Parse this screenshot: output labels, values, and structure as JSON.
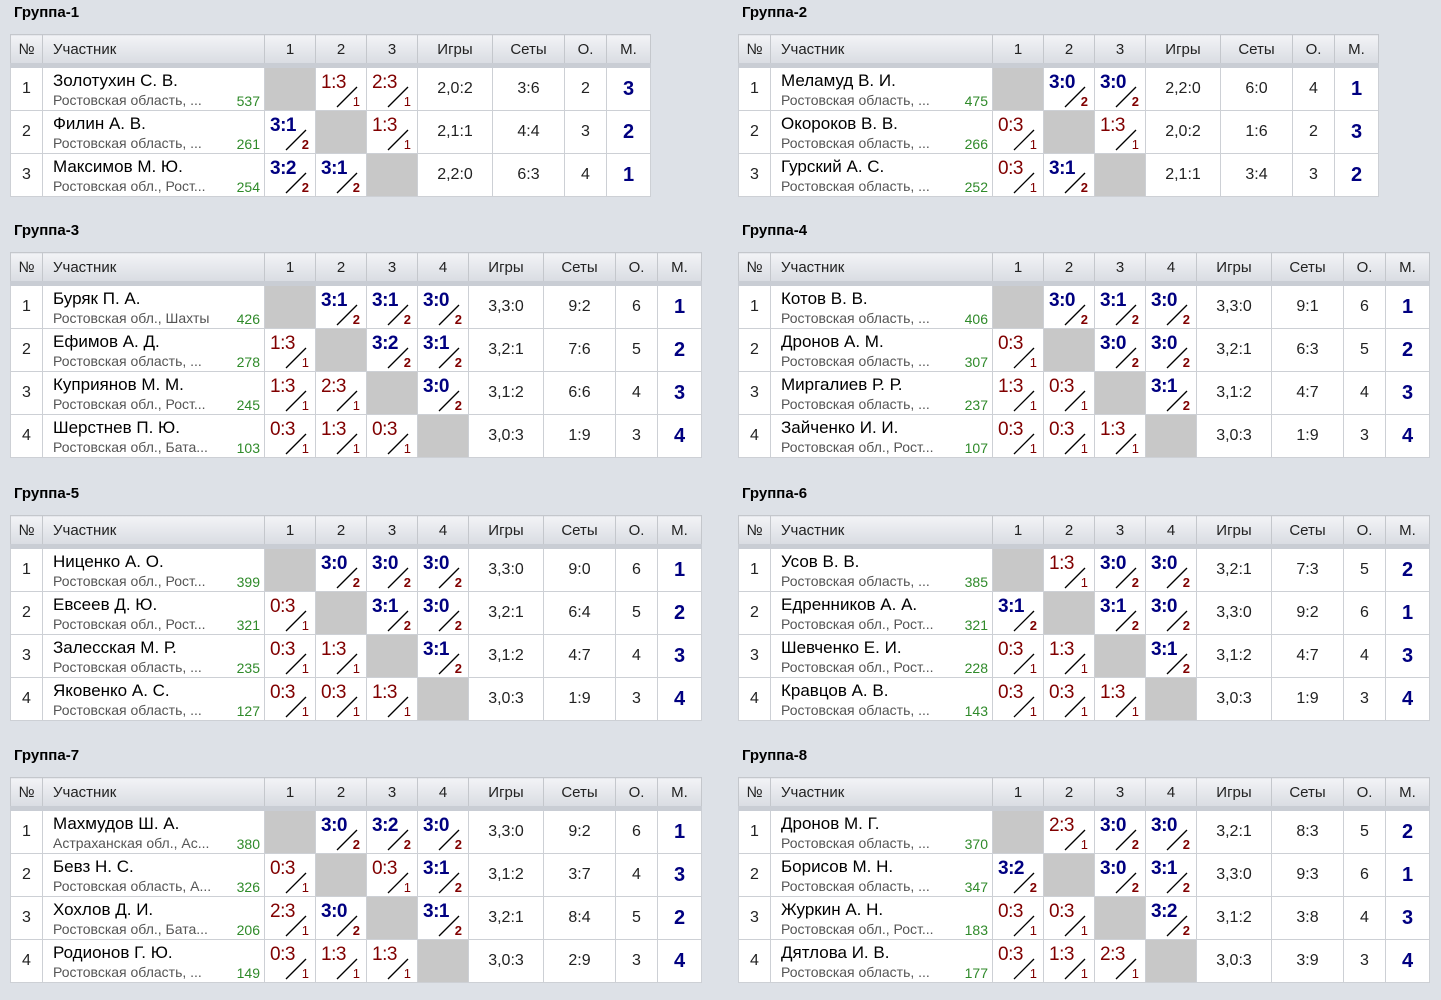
{
  "headers": {
    "num": "№",
    "participant": "Участник",
    "games": "Игры",
    "sets": "Сеты",
    "points": "О.",
    "place": "М."
  },
  "groups": [
    {
      "title": "Группа-1",
      "players": [
        {
          "num": "1",
          "name": "Золотухин С. В.",
          "region": "Ростовская область, ...",
          "rating": "537",
          "matches": [
            null,
            {
              "score": "1:3",
              "pts": "1",
              "win": false
            },
            {
              "score": "2:3",
              "pts": "1",
              "win": false
            }
          ],
          "games": "2,0:2",
          "sets": "3:6",
          "points": "2",
          "place": "3"
        },
        {
          "num": "2",
          "name": "Филин А. В.",
          "region": "Ростовская область, ...",
          "rating": "261",
          "matches": [
            {
              "score": "3:1",
              "pts": "2",
              "win": true
            },
            null,
            {
              "score": "1:3",
              "pts": "1",
              "win": false
            }
          ],
          "games": "2,1:1",
          "sets": "4:4",
          "points": "3",
          "place": "2"
        },
        {
          "num": "3",
          "name": "Максимов М. Ю.",
          "region": "Ростовская обл., Рост...",
          "rating": "254",
          "matches": [
            {
              "score": "3:2",
              "pts": "2",
              "win": true
            },
            {
              "score": "3:1",
              "pts": "2",
              "win": true
            },
            null
          ],
          "games": "2,2:0",
          "sets": "6:3",
          "points": "4",
          "place": "1"
        }
      ]
    },
    {
      "title": "Группа-2",
      "players": [
        {
          "num": "1",
          "name": "Меламуд В. И.",
          "region": "Ростовская область, ...",
          "rating": "475",
          "matches": [
            null,
            {
              "score": "3:0",
              "pts": "2",
              "win": true
            },
            {
              "score": "3:0",
              "pts": "2",
              "win": true
            }
          ],
          "games": "2,2:0",
          "sets": "6:0",
          "points": "4",
          "place": "1"
        },
        {
          "num": "2",
          "name": "Окороков В. В.",
          "region": "Ростовская область, ...",
          "rating": "266",
          "matches": [
            {
              "score": "0:3",
              "pts": "1",
              "win": false
            },
            null,
            {
              "score": "1:3",
              "pts": "1",
              "win": false
            }
          ],
          "games": "2,0:2",
          "sets": "1:6",
          "points": "2",
          "place": "3"
        },
        {
          "num": "3",
          "name": "Гурский А. С.",
          "region": "Ростовская область, ...",
          "rating": "252",
          "matches": [
            {
              "score": "0:3",
              "pts": "1",
              "win": false
            },
            {
              "score": "3:1",
              "pts": "2",
              "win": true
            },
            null
          ],
          "games": "2,1:1",
          "sets": "3:4",
          "points": "3",
          "place": "2"
        }
      ]
    },
    {
      "title": "Группа-3",
      "players": [
        {
          "num": "1",
          "name": "Буряк П. А.",
          "region": "Ростовская обл., Шахты",
          "rating": "426",
          "matches": [
            null,
            {
              "score": "3:1",
              "pts": "2",
              "win": true
            },
            {
              "score": "3:1",
              "pts": "2",
              "win": true
            },
            {
              "score": "3:0",
              "pts": "2",
              "win": true
            }
          ],
          "games": "3,3:0",
          "sets": "9:2",
          "points": "6",
          "place": "1"
        },
        {
          "num": "2",
          "name": "Ефимов А. Д.",
          "region": "Ростовская область, ...",
          "rating": "278",
          "matches": [
            {
              "score": "1:3",
              "pts": "1",
              "win": false
            },
            null,
            {
              "score": "3:2",
              "pts": "2",
              "win": true
            },
            {
              "score": "3:1",
              "pts": "2",
              "win": true
            }
          ],
          "games": "3,2:1",
          "sets": "7:6",
          "points": "5",
          "place": "2"
        },
        {
          "num": "3",
          "name": "Куприянов М. М.",
          "region": "Ростовская обл., Рост...",
          "rating": "245",
          "matches": [
            {
              "score": "1:3",
              "pts": "1",
              "win": false
            },
            {
              "score": "2:3",
              "pts": "1",
              "win": false
            },
            null,
            {
              "score": "3:0",
              "pts": "2",
              "win": true
            }
          ],
          "games": "3,1:2",
          "sets": "6:6",
          "points": "4",
          "place": "3"
        },
        {
          "num": "4",
          "name": "Шерстнев П. Ю.",
          "region": "Ростовская обл., Бата...",
          "rating": "103",
          "matches": [
            {
              "score": "0:3",
              "pts": "1",
              "win": false
            },
            {
              "score": "1:3",
              "pts": "1",
              "win": false
            },
            {
              "score": "0:3",
              "pts": "1",
              "win": false
            },
            null
          ],
          "games": "3,0:3",
          "sets": "1:9",
          "points": "3",
          "place": "4"
        }
      ]
    },
    {
      "title": "Группа-4",
      "players": [
        {
          "num": "1",
          "name": "Котов В. В.",
          "region": "Ростовская область, ...",
          "rating": "406",
          "matches": [
            null,
            {
              "score": "3:0",
              "pts": "2",
              "win": true
            },
            {
              "score": "3:1",
              "pts": "2",
              "win": true
            },
            {
              "score": "3:0",
              "pts": "2",
              "win": true
            }
          ],
          "games": "3,3:0",
          "sets": "9:1",
          "points": "6",
          "place": "1"
        },
        {
          "num": "2",
          "name": "Дронов А. М.",
          "region": "Ростовская область, ...",
          "rating": "307",
          "matches": [
            {
              "score": "0:3",
              "pts": "1",
              "win": false
            },
            null,
            {
              "score": "3:0",
              "pts": "2",
              "win": true
            },
            {
              "score": "3:0",
              "pts": "2",
              "win": true
            }
          ],
          "games": "3,2:1",
          "sets": "6:3",
          "points": "5",
          "place": "2"
        },
        {
          "num": "3",
          "name": "Миргалиев Р. Р.",
          "region": "Ростовская область, ...",
          "rating": "237",
          "matches": [
            {
              "score": "1:3",
              "pts": "1",
              "win": false
            },
            {
              "score": "0:3",
              "pts": "1",
              "win": false
            },
            null,
            {
              "score": "3:1",
              "pts": "2",
              "win": true
            }
          ],
          "games": "3,1:2",
          "sets": "4:7",
          "points": "4",
          "place": "3"
        },
        {
          "num": "4",
          "name": "Зайченко И. И.",
          "region": "Ростовская обл., Рост...",
          "rating": "107",
          "matches": [
            {
              "score": "0:3",
              "pts": "1",
              "win": false
            },
            {
              "score": "0:3",
              "pts": "1",
              "win": false
            },
            {
              "score": "1:3",
              "pts": "1",
              "win": false
            },
            null
          ],
          "games": "3,0:3",
          "sets": "1:9",
          "points": "3",
          "place": "4"
        }
      ]
    },
    {
      "title": "Группа-5",
      "players": [
        {
          "num": "1",
          "name": "Ниценко А. О.",
          "region": "Ростовская обл., Рост...",
          "rating": "399",
          "matches": [
            null,
            {
              "score": "3:0",
              "pts": "2",
              "win": true
            },
            {
              "score": "3:0",
              "pts": "2",
              "win": true
            },
            {
              "score": "3:0",
              "pts": "2",
              "win": true
            }
          ],
          "games": "3,3:0",
          "sets": "9:0",
          "points": "6",
          "place": "1"
        },
        {
          "num": "2",
          "name": "Евсеев Д. Ю.",
          "region": "Ростовская обл., Рост...",
          "rating": "321",
          "matches": [
            {
              "score": "0:3",
              "pts": "1",
              "win": false
            },
            null,
            {
              "score": "3:1",
              "pts": "2",
              "win": true
            },
            {
              "score": "3:0",
              "pts": "2",
              "win": true
            }
          ],
          "games": "3,2:1",
          "sets": "6:4",
          "points": "5",
          "place": "2"
        },
        {
          "num": "3",
          "name": "Залесская М. Р.",
          "region": "Ростовская область, ...",
          "rating": "235",
          "matches": [
            {
              "score": "0:3",
              "pts": "1",
              "win": false
            },
            {
              "score": "1:3",
              "pts": "1",
              "win": false
            },
            null,
            {
              "score": "3:1",
              "pts": "2",
              "win": true
            }
          ],
          "games": "3,1:2",
          "sets": "4:7",
          "points": "4",
          "place": "3"
        },
        {
          "num": "4",
          "name": "Яковенко А. С.",
          "region": "Ростовская область, ...",
          "rating": "127",
          "matches": [
            {
              "score": "0:3",
              "pts": "1",
              "win": false
            },
            {
              "score": "0:3",
              "pts": "1",
              "win": false
            },
            {
              "score": "1:3",
              "pts": "1",
              "win": false
            },
            null
          ],
          "games": "3,0:3",
          "sets": "1:9",
          "points": "3",
          "place": "4"
        }
      ]
    },
    {
      "title": "Группа-6",
      "players": [
        {
          "num": "1",
          "name": "Усов В. В.",
          "region": "Ростовская область, ...",
          "rating": "385",
          "matches": [
            null,
            {
              "score": "1:3",
              "pts": "1",
              "win": false
            },
            {
              "score": "3:0",
              "pts": "2",
              "win": true
            },
            {
              "score": "3:0",
              "pts": "2",
              "win": true
            }
          ],
          "games": "3,2:1",
          "sets": "7:3",
          "points": "5",
          "place": "2"
        },
        {
          "num": "2",
          "name": "Едренников А. А.",
          "region": "Ростовская обл., Рост...",
          "rating": "321",
          "matches": [
            {
              "score": "3:1",
              "pts": "2",
              "win": true
            },
            null,
            {
              "score": "3:1",
              "pts": "2",
              "win": true
            },
            {
              "score": "3:0",
              "pts": "2",
              "win": true
            }
          ],
          "games": "3,3:0",
          "sets": "9:2",
          "points": "6",
          "place": "1"
        },
        {
          "num": "3",
          "name": "Шевченко Е. И.",
          "region": "Ростовская обл., Рост...",
          "rating": "228",
          "matches": [
            {
              "score": "0:3",
              "pts": "1",
              "win": false
            },
            {
              "score": "1:3",
              "pts": "1",
              "win": false
            },
            null,
            {
              "score": "3:1",
              "pts": "2",
              "win": true
            }
          ],
          "games": "3,1:2",
          "sets": "4:7",
          "points": "4",
          "place": "3"
        },
        {
          "num": "4",
          "name": "Кравцов А. В.",
          "region": "Ростовская область, ...",
          "rating": "143",
          "matches": [
            {
              "score": "0:3",
              "pts": "1",
              "win": false
            },
            {
              "score": "0:3",
              "pts": "1",
              "win": false
            },
            {
              "score": "1:3",
              "pts": "1",
              "win": false
            },
            null
          ],
          "games": "3,0:3",
          "sets": "1:9",
          "points": "3",
          "place": "4"
        }
      ]
    },
    {
      "title": "Группа-7",
      "players": [
        {
          "num": "1",
          "name": "Махмудов Ш. А.",
          "region": "Астраханская обл., Ас...",
          "rating": "380",
          "matches": [
            null,
            {
              "score": "3:0",
              "pts": "2",
              "win": true
            },
            {
              "score": "3:2",
              "pts": "2",
              "win": true
            },
            {
              "score": "3:0",
              "pts": "2",
              "win": true
            }
          ],
          "games": "3,3:0",
          "sets": "9:2",
          "points": "6",
          "place": "1"
        },
        {
          "num": "2",
          "name": "Бевз Н. С.",
          "region": "Ростовская область, А...",
          "rating": "326",
          "matches": [
            {
              "score": "0:3",
              "pts": "1",
              "win": false
            },
            null,
            {
              "score": "0:3",
              "pts": "1",
              "win": false
            },
            {
              "score": "3:1",
              "pts": "2",
              "win": true
            }
          ],
          "games": "3,1:2",
          "sets": "3:7",
          "points": "4",
          "place": "3"
        },
        {
          "num": "3",
          "name": "Хохлов Д. И.",
          "region": "Ростовская обл., Бата...",
          "rating": "206",
          "matches": [
            {
              "score": "2:3",
              "pts": "1",
              "win": false
            },
            {
              "score": "3:0",
              "pts": "2",
              "win": true
            },
            null,
            {
              "score": "3:1",
              "pts": "2",
              "win": true
            }
          ],
          "games": "3,2:1",
          "sets": "8:4",
          "points": "5",
          "place": "2"
        },
        {
          "num": "4",
          "name": "Родионов Г. Ю.",
          "region": "Ростовская область, ...",
          "rating": "149",
          "matches": [
            {
              "score": "0:3",
              "pts": "1",
              "win": false
            },
            {
              "score": "1:3",
              "pts": "1",
              "win": false
            },
            {
              "score": "1:3",
              "pts": "1",
              "win": false
            },
            null
          ],
          "games": "3,0:3",
          "sets": "2:9",
          "points": "3",
          "place": "4"
        }
      ]
    },
    {
      "title": "Группа-8",
      "players": [
        {
          "num": "1",
          "name": "Дронов М. Г.",
          "region": "Ростовская область, ...",
          "rating": "370",
          "matches": [
            null,
            {
              "score": "2:3",
              "pts": "1",
              "win": false
            },
            {
              "score": "3:0",
              "pts": "2",
              "win": true
            },
            {
              "score": "3:0",
              "pts": "2",
              "win": true
            }
          ],
          "games": "3,2:1",
          "sets": "8:3",
          "points": "5",
          "place": "2"
        },
        {
          "num": "2",
          "name": "Борисов М. Н.",
          "region": "Ростовская область, ...",
          "rating": "347",
          "matches": [
            {
              "score": "3:2",
              "pts": "2",
              "win": true
            },
            null,
            {
              "score": "3:0",
              "pts": "2",
              "win": true
            },
            {
              "score": "3:1",
              "pts": "2",
              "win": true
            }
          ],
          "games": "3,3:0",
          "sets": "9:3",
          "points": "6",
          "place": "1"
        },
        {
          "num": "3",
          "name": "Журкин А. Н.",
          "region": "Ростовская обл., Рост...",
          "rating": "183",
          "matches": [
            {
              "score": "0:3",
              "pts": "1",
              "win": false
            },
            {
              "score": "0:3",
              "pts": "1",
              "win": false
            },
            null,
            {
              "score": "3:2",
              "pts": "2",
              "win": true
            }
          ],
          "games": "3,1:2",
          "sets": "3:8",
          "points": "4",
          "place": "3"
        },
        {
          "num": "4",
          "name": "Дятлова И. В.",
          "region": "Ростовская область, ...",
          "rating": "177",
          "matches": [
            {
              "score": "0:3",
              "pts": "1",
              "win": false
            },
            {
              "score": "1:3",
              "pts": "1",
              "win": false
            },
            {
              "score": "2:3",
              "pts": "1",
              "win": false
            },
            null
          ],
          "games": "3,0:3",
          "sets": "3:9",
          "points": "3",
          "place": "4"
        }
      ]
    }
  ]
}
